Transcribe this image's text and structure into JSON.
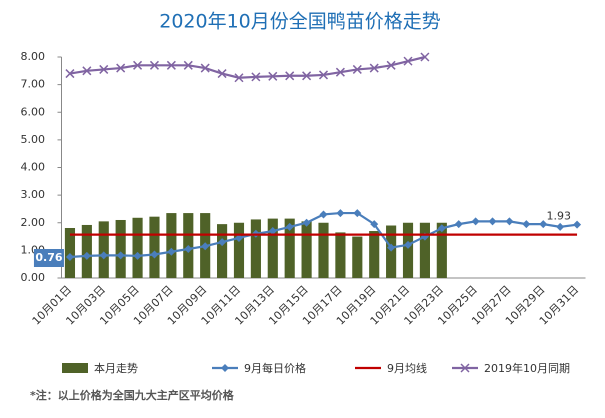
{
  "chart_data": {
    "type": "combo",
    "title": "2020年10月份全国鸭苗价格走势",
    "note": "*注：以上价格为全国九大主产区平均价格",
    "categories": [
      "10月01日",
      null,
      "10月03日",
      null,
      "10月05日",
      null,
      "10月07日",
      null,
      "10月09日",
      null,
      "10月11日",
      null,
      "10月13日",
      null,
      "10月15日",
      null,
      "10月17日",
      null,
      "10月19日",
      null,
      "10月21日",
      null,
      "10月23日",
      null,
      "10月25日",
      null,
      "10月27日",
      null,
      "10月29日",
      null,
      "10月31日"
    ],
    "ylim": [
      0,
      8
    ],
    "yticks": [
      {
        "value": 0,
        "label": "0.00"
      },
      {
        "value": 1,
        "label": "1.00"
      },
      {
        "value": 2,
        "label": "2.00"
      },
      {
        "value": 3,
        "label": "3.00"
      },
      {
        "value": 4,
        "label": "4.00"
      },
      {
        "value": 5,
        "label": "5.00"
      },
      {
        "value": 6,
        "label": "6.00"
      },
      {
        "value": 7,
        "label": "7.00"
      },
      {
        "value": 8,
        "label": "8.00"
      }
    ],
    "legend": "bottom",
    "series": [
      {
        "name": "本月走势",
        "type": "bar",
        "color": "#4f6228",
        "values": [
          1.81,
          1.92,
          2.05,
          2.1,
          2.18,
          2.22,
          2.35,
          2.35,
          2.35,
          1.95,
          2.0,
          2.12,
          2.15,
          2.15,
          2.05,
          2.0,
          1.65,
          1.5,
          1.7,
          1.9,
          2.0,
          2.0,
          2.0,
          null,
          null,
          null,
          null,
          null,
          null,
          null,
          null
        ]
      },
      {
        "name": "9月每日价格",
        "type": "line",
        "marker": "diamond",
        "color": "#4a7ebb",
        "values": [
          0.76,
          0.8,
          0.82,
          0.82,
          0.8,
          0.85,
          0.95,
          1.05,
          1.15,
          1.3,
          1.45,
          1.6,
          1.7,
          1.85,
          2.0,
          2.3,
          2.35,
          2.35,
          1.95,
          1.1,
          1.2,
          1.5,
          1.8,
          1.95,
          2.05,
          2.05,
          2.05,
          1.95,
          1.95,
          1.85,
          1.93
        ],
        "value_labels": [
          "0.76",
          null,
          null,
          null,
          null,
          null,
          null,
          null,
          null,
          null,
          null,
          null,
          null,
          null,
          null,
          null,
          null,
          null,
          null,
          null,
          null,
          null,
          null,
          null,
          null,
          null,
          null,
          null,
          null,
          null,
          "1.93"
        ]
      },
      {
        "name": "9月均线",
        "type": "line",
        "marker": "none",
        "color": "#c00000",
        "values": [
          1.57,
          1.57,
          1.57,
          1.57,
          1.57,
          1.57,
          1.57,
          1.57,
          1.57,
          1.57,
          1.57,
          1.57,
          1.57,
          1.57,
          1.57,
          1.57,
          1.57,
          1.57,
          1.57,
          1.57,
          1.57,
          1.57,
          1.57,
          1.57,
          1.57,
          1.57,
          1.57,
          1.57,
          1.57,
          1.57,
          1.57
        ]
      },
      {
        "name": "2019年10月同期",
        "type": "line",
        "marker": "x",
        "color": "#8064a2",
        "values": [
          7.4,
          7.5,
          7.55,
          7.6,
          7.7,
          7.7,
          7.7,
          7.7,
          7.6,
          7.4,
          7.25,
          7.28,
          7.3,
          7.32,
          7.32,
          7.35,
          7.45,
          7.55,
          7.6,
          7.7,
          7.85,
          8.0,
          null,
          null,
          null,
          null,
          null,
          null,
          null,
          null,
          null
        ]
      }
    ]
  }
}
